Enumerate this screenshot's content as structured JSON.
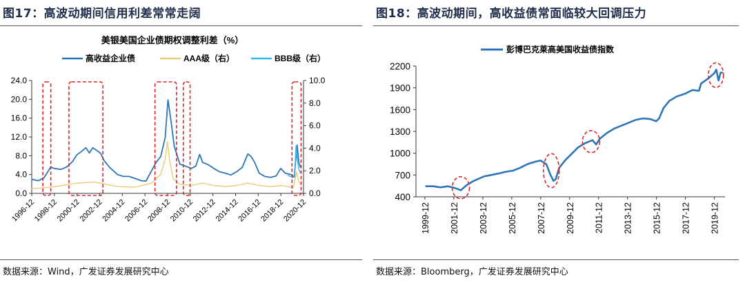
{
  "left": {
    "figure_title": "图17：高波动期间信用利差常常走阔",
    "source": "数据来源：Wind，广发证券发展研究中心"
  },
  "right": {
    "figure_title": "图18：高波动期间，高收益债常面临较大回调压力",
    "source": "数据来源：Bloomberg，广发证券发展研究中心"
  },
  "colors": {
    "dark_blue": "#2e75b6",
    "light_blue": "#35b7ee",
    "tan": "#e9cc7a",
    "highlight_red": "#d9262a",
    "line_blue": "#2e75b6"
  },
  "chart_data": [
    {
      "type": "line",
      "title": "美银美国企业债期权调整利差（%）",
      "x_ticks": [
        "1996-12",
        "1998-12",
        "2000-12",
        "2002-12",
        "2004-12",
        "2006-12",
        "2008-12",
        "2010-12",
        "2012-12",
        "2014-12",
        "2016-12",
        "2018-12",
        "2020-12"
      ],
      "y_left_ticks": [
        "0.0",
        "4.0",
        "8.0",
        "12.0",
        "16.0",
        "20.0",
        "24.0"
      ],
      "y_right_ticks": [
        "0.0",
        "2.0",
        "4.0",
        "6.0",
        "8.0",
        "10.0"
      ],
      "ylim_left": [
        0,
        24
      ],
      "ylim_right": [
        0,
        10
      ],
      "legend": [
        "高收益企业债",
        "AAA级（右）",
        "BBB级（右）"
      ],
      "series": [
        {
          "name": "高收益企业债",
          "axis": "left",
          "x": [
            1996.9,
            1997.5,
            1998.0,
            1998.6,
            1998.9,
            1999.5,
            2000.0,
            2000.5,
            2000.9,
            2001.3,
            2001.7,
            2002.0,
            2002.3,
            2002.8,
            2003.0,
            2003.3,
            2003.8,
            2004.5,
            2005.0,
            2005.5,
            2006.0,
            2006.6,
            2007.0,
            2007.5,
            2007.9,
            2008.3,
            2008.7,
            2008.95,
            2009.2,
            2009.5,
            2010.0,
            2010.5,
            2011.0,
            2011.4,
            2011.75,
            2012.0,
            2012.5,
            2013.0,
            2013.5,
            2014.0,
            2014.5,
            2015.0,
            2015.5,
            2016.0,
            2016.3,
            2016.6,
            2017.0,
            2017.5,
            2018.0,
            2018.5,
            2018.9,
            2019.3,
            2019.8,
            2020.1,
            2020.22,
            2020.35,
            2020.5,
            2020.65
          ],
          "y": [
            3.0,
            2.7,
            3.3,
            5.6,
            5.3,
            5.1,
            5.6,
            6.7,
            8.2,
            8.9,
            9.7,
            8.6,
            9.7,
            8.9,
            8.5,
            7.0,
            5.5,
            4.0,
            3.6,
            3.6,
            3.2,
            2.7,
            2.6,
            4.8,
            6.6,
            7.8,
            11.8,
            19.9,
            15.6,
            10.0,
            6.2,
            5.8,
            5.3,
            5.8,
            8.3,
            6.6,
            6.1,
            5.3,
            4.6,
            4.3,
            3.9,
            4.6,
            5.5,
            8.4,
            7.8,
            6.6,
            4.3,
            3.6,
            3.4,
            3.7,
            5.3,
            4.3,
            4.0,
            3.5,
            7.0,
            10.3,
            6.6,
            5.5
          ]
        },
        {
          "name": "AAA级（右）",
          "axis": "right",
          "x": [
            1996.9,
            1998.0,
            1999.0,
            2000.5,
            2001.5,
            2002.5,
            2003.5,
            2004.5,
            2006.0,
            2007.5,
            2008.3,
            2008.7,
            2008.9,
            2009.1,
            2009.4,
            2010.0,
            2011.0,
            2012.0,
            2013.0,
            2014.0,
            2015.0,
            2016.0,
            2017.0,
            2018.0,
            2019.0,
            2020.0,
            2020.2,
            2020.3,
            2020.5,
            2020.65
          ],
          "y": [
            0.4,
            0.5,
            0.6,
            0.85,
            0.95,
            1.0,
            0.8,
            0.6,
            0.55,
            0.9,
            1.7,
            3.0,
            4.6,
            2.9,
            1.3,
            0.8,
            0.7,
            0.9,
            0.7,
            0.6,
            0.7,
            0.9,
            0.7,
            0.6,
            0.7,
            0.5,
            1.4,
            1.9,
            1.0,
            0.8
          ]
        },
        {
          "name": "BBB级（右）",
          "axis": "right",
          "x": [
            2019.5,
            2020.0,
            2020.15,
            2020.2,
            2020.25,
            2020.35,
            2020.5,
            2020.65
          ],
          "y": [
            1.6,
            1.4,
            1.8,
            3.0,
            4.2,
            3.2,
            2.1,
            1.8
          ]
        }
      ],
      "highlight_periods": [
        [
          1997.9,
          1998.6
        ],
        [
          2000.2,
          2003.2
        ],
        [
          2007.8,
          2009.7
        ],
        [
          2010.3,
          2010.9
        ],
        [
          2019.9,
          2020.7
        ]
      ]
    },
    {
      "type": "line",
      "title": "",
      "x_ticks": [
        "1999-12",
        "2001-12",
        "2003-12",
        "2005-12",
        "2007-12",
        "2009-12",
        "2011-12",
        "2013-12",
        "2015-12",
        "2017-12",
        "2019-12"
      ],
      "y_ticks": [
        "400",
        "700",
        "1000",
        "1300",
        "1600",
        "1900",
        "2200"
      ],
      "ylim": [
        400,
        2200
      ],
      "legend": [
        "彭博巴克莱高美国收益债指数"
      ],
      "series": [
        {
          "name": "彭博巴克莱高美国收益债指数",
          "x": [
            1999.95,
            2000.5,
            2001.0,
            2001.5,
            2002.0,
            2002.4,
            2002.8,
            2003.3,
            2004.0,
            2004.5,
            2005.0,
            2005.5,
            2006.0,
            2006.5,
            2007.0,
            2007.5,
            2007.9,
            2008.3,
            2008.6,
            2008.8,
            2008.95,
            2009.2,
            2009.6,
            2010.0,
            2010.5,
            2011.0,
            2011.5,
            2011.75,
            2012.0,
            2012.5,
            2013.0,
            2013.5,
            2014.0,
            2014.5,
            2015.0,
            2015.5,
            2015.9,
            2016.1,
            2016.4,
            2016.8,
            2017.3,
            2017.9,
            2018.4,
            2018.85,
            2019.0,
            2019.5,
            2019.9,
            2020.05,
            2020.2,
            2020.35,
            2020.5
          ],
          "y": [
            545,
            545,
            530,
            545,
            520,
            490,
            560,
            620,
            680,
            700,
            720,
            745,
            760,
            800,
            850,
            880,
            900,
            850,
            700,
            620,
            640,
            800,
            900,
            980,
            1080,
            1140,
            1180,
            1120,
            1200,
            1280,
            1340,
            1380,
            1420,
            1460,
            1480,
            1470,
            1440,
            1480,
            1620,
            1720,
            1780,
            1820,
            1870,
            1860,
            1960,
            2030,
            2100,
            2150,
            2000,
            2110,
            2110
          ]
        }
      ],
      "highlight_periods": [
        [
          2001.9,
          2002.9
        ],
        [
          2008.2,
          2009.1
        ],
        [
          2010.9,
          2011.9
        ],
        [
          2019.6,
          2020.45
        ]
      ]
    }
  ]
}
